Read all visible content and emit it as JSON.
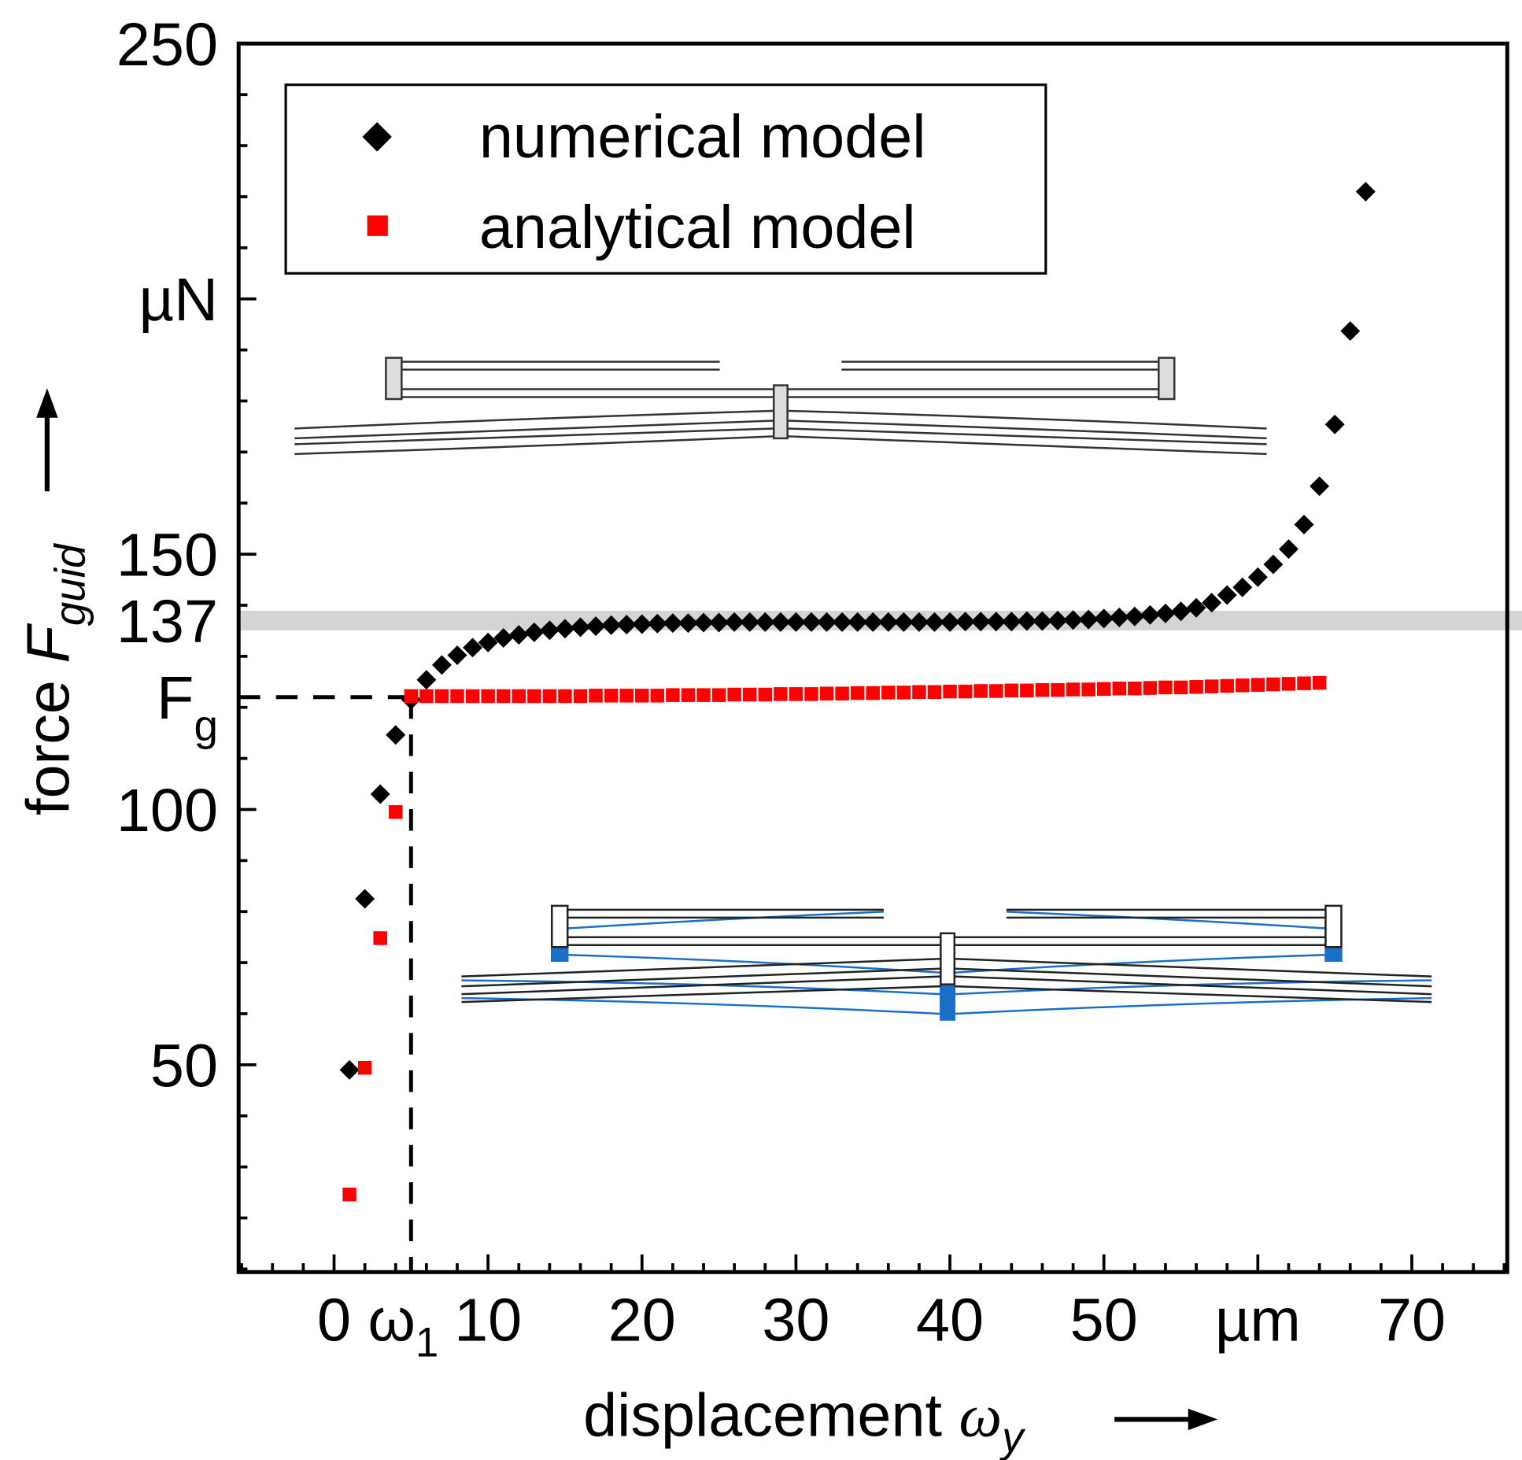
{
  "chart_data": {
    "type": "scatter",
    "xlabel": "displacement",
    "xlabel_symbol": "ω",
    "xlabel_sub": "y",
    "ylabel": "force",
    "ylabel_symbol": "F",
    "ylabel_sub": "guid",
    "xlim": [
      -6.2,
      76.2
    ],
    "ylim": [
      9.4,
      250
    ],
    "x_ticks": [
      {
        "value": 0,
        "label": "0"
      },
      {
        "value": 10,
        "label": "10"
      },
      {
        "value": 20,
        "label": "20"
      },
      {
        "value": 30,
        "label": "30"
      },
      {
        "value": 40,
        "label": "40"
      },
      {
        "value": 50,
        "label": "50"
      },
      {
        "value": 60,
        "label": "µm"
      },
      {
        "value": 70,
        "label": "70"
      }
    ],
    "x_special_tick": {
      "value": 5,
      "label": "ω",
      "sub": "1"
    },
    "y_ticks": [
      {
        "value": 50,
        "label": "50"
      },
      {
        "value": 100,
        "label": "100"
      },
      {
        "value": 150,
        "label": "150"
      },
      {
        "value": 200,
        "label": "µN"
      },
      {
        "value": 250,
        "label": "250"
      }
    ],
    "y_special_ticks": [
      {
        "value": 137,
        "label": "137",
        "color": "#ff0000"
      },
      {
        "value": 122,
        "label": "F",
        "sub": "g",
        "color": "#000000"
      }
    ],
    "reference_band": {
      "y": 137,
      "color": "#d4d4d4"
    },
    "reference_dashed": {
      "x": 5,
      "y": 122
    },
    "legend_position": "top-left",
    "series": [
      {
        "name": "numerical model",
        "marker": "diamond",
        "color": "#000000",
        "x": [
          1,
          2,
          3,
          4,
          5,
          6,
          7,
          8,
          9,
          10,
          11,
          12,
          13,
          14,
          15,
          16,
          17,
          18,
          19,
          20,
          21,
          22,
          23,
          24,
          25,
          26,
          27,
          28,
          29,
          30,
          31,
          32,
          33,
          34,
          35,
          36,
          37,
          38,
          39,
          40,
          41,
          42,
          43,
          44,
          45,
          46,
          47,
          48,
          49,
          50,
          51,
          52,
          53,
          54,
          55,
          56,
          57,
          58,
          59,
          60,
          61,
          62,
          63,
          64,
          65,
          66,
          67
        ],
        "y": [
          49,
          82.5,
          103,
          114.6,
          121.5,
          125.4,
          128.3,
          130.2,
          131.7,
          132.7,
          133.6,
          134.2,
          134.7,
          135.1,
          135.4,
          135.7,
          135.9,
          136.1,
          136.2,
          136.3,
          136.4,
          136.5,
          136.5,
          136.6,
          136.6,
          136.7,
          136.7,
          136.7,
          136.7,
          136.7,
          136.7,
          136.7,
          136.7,
          136.7,
          136.7,
          136.7,
          136.7,
          136.7,
          136.7,
          136.7,
          136.8,
          136.8,
          136.8,
          136.8,
          136.9,
          136.9,
          137,
          137.1,
          137.2,
          137.4,
          137.6,
          137.8,
          138.1,
          138.4,
          138.8,
          139.5,
          140.5,
          142,
          143.5,
          145.5,
          148,
          151,
          155.8,
          163.3,
          175.4,
          193.7,
          221
        ]
      },
      {
        "name": "analytical model",
        "marker": "square",
        "color": "#ff0000",
        "x": [
          1,
          2,
          3,
          4,
          5,
          6,
          7,
          8,
          9,
          10,
          11,
          12,
          13,
          14,
          15,
          16,
          17,
          18,
          19,
          20,
          21,
          22,
          23,
          24,
          25,
          26,
          27,
          28,
          29,
          30,
          31,
          32,
          33,
          34,
          35,
          36,
          37,
          38,
          39,
          40,
          41,
          42,
          43,
          44,
          45,
          46,
          47,
          48,
          49,
          50,
          51,
          52,
          53,
          54,
          55,
          56,
          57,
          58,
          59,
          60,
          61,
          62,
          63,
          64
        ],
        "y": [
          24.6,
          49.4,
          74.8,
          99.5,
          122.2,
          122.2,
          122.2,
          122.2,
          122.2,
          122.2,
          122.2,
          122.2,
          122.2,
          122.2,
          122.2,
          122.2,
          122.3,
          122.3,
          122.3,
          122.3,
          122.3,
          122.4,
          122.4,
          122.4,
          122.4,
          122.5,
          122.5,
          122.5,
          122.6,
          122.6,
          122.6,
          122.7,
          122.7,
          122.8,
          122.8,
          122.9,
          122.9,
          123,
          123,
          123.1,
          123.1,
          123.2,
          123.2,
          123.3,
          123.3,
          123.4,
          123.4,
          123.5,
          123.5,
          123.6,
          123.7,
          123.7,
          123.8,
          123.9,
          123.9,
          124,
          124.1,
          124.2,
          124.3,
          124.4,
          124.5,
          124.6,
          124.7,
          124.8
        ]
      }
    ]
  }
}
